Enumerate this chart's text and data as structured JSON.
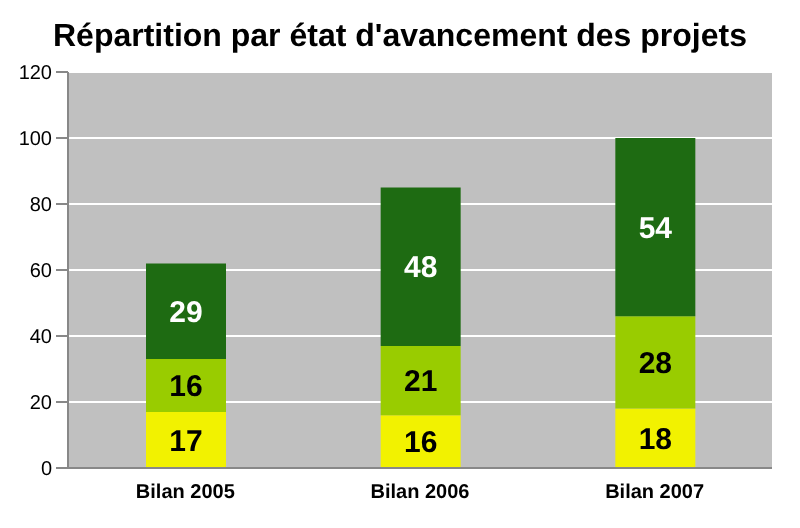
{
  "chart_data": {
    "type": "bar",
    "title": "Répartition par état d'avancement des projets",
    "categories": [
      "Bilan 2005",
      "Bilan 2006",
      "Bilan 2007"
    ],
    "stacked": true,
    "data_labels": true,
    "grid": "y",
    "legend": false,
    "ylim": [
      0,
      120
    ],
    "yticks": [
      0,
      20,
      40,
      60,
      80,
      100,
      120
    ],
    "series": [
      {
        "color": "#f2f200",
        "values": [
          17,
          16,
          18
        ]
      },
      {
        "color": "#99cc00",
        "values": [
          16,
          21,
          28
        ]
      },
      {
        "color": "#1e6b12",
        "values": [
          29,
          48,
          54
        ]
      }
    ]
  }
}
